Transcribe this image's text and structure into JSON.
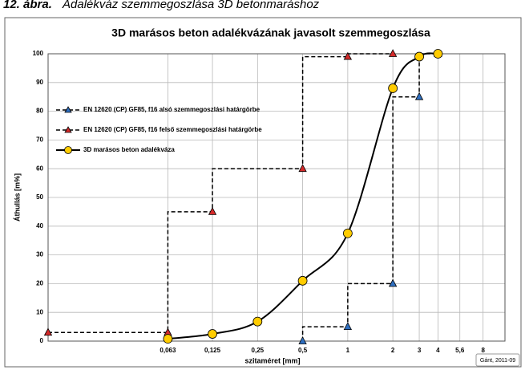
{
  "caption_label": "12. ábra.",
  "caption_text": "Adalékváz szemmegoszlása 3D betonmaráshoz",
  "chart_data": {
    "type": "line",
    "title": "3D marásos beton adalékvázának javasolt szemmegoszlása",
    "xlabel": "szitaméret [mm]",
    "ylabel": "Áthullás [m%]",
    "annotation": "Gánt, 2011-09",
    "xscale": "log",
    "xlim": [
      0.01,
      11.2
    ],
    "ylim": [
      0,
      100
    ],
    "xticks": [
      {
        "value": 0.063,
        "label": "0,063"
      },
      {
        "value": 0.125,
        "label": "0,125"
      },
      {
        "value": 0.25,
        "label": "0,25"
      },
      {
        "value": 0.5,
        "label": "0,5"
      },
      1,
      2,
      3,
      4,
      {
        "value": 5.6,
        "label": "5,6"
      },
      8
    ],
    "yticks": [
      0,
      10,
      20,
      30,
      40,
      50,
      60,
      70,
      80,
      90,
      100
    ],
    "grid": true,
    "legend": "upper left",
    "series": [
      {
        "name": "EN 12620 (CP) GF85, f16 alsó szemmegoszlási határgörbe",
        "color": "#2f6fc0",
        "marker": "^",
        "linestyle": "dashed",
        "drawstyle": "steps",
        "x": [
          0.5,
          1,
          2,
          3,
          4
        ],
        "values": [
          0,
          5,
          20,
          85,
          100
        ]
      },
      {
        "name": "EN 12620 (CP) GF85, f16 felső szemmegoszlási határgörbe",
        "color": "#d42a2a",
        "marker": "^",
        "linestyle": "dashed",
        "drawstyle": "steps",
        "x": [
          0.01,
          0.063,
          0.125,
          0.5,
          1,
          2
        ],
        "values": [
          3,
          3,
          45,
          60,
          99,
          100
        ]
      },
      {
        "name": "3D marásos beton adalékváza",
        "color": "#ffcc00",
        "marker": "o",
        "linestyle": "solid",
        "drawstyle": "smooth",
        "x": [
          0.063,
          0.125,
          0.25,
          0.5,
          1,
          2,
          3,
          4
        ],
        "values": [
          0.8,
          2.5,
          6.8,
          21,
          37.5,
          88,
          99,
          100
        ]
      }
    ]
  }
}
